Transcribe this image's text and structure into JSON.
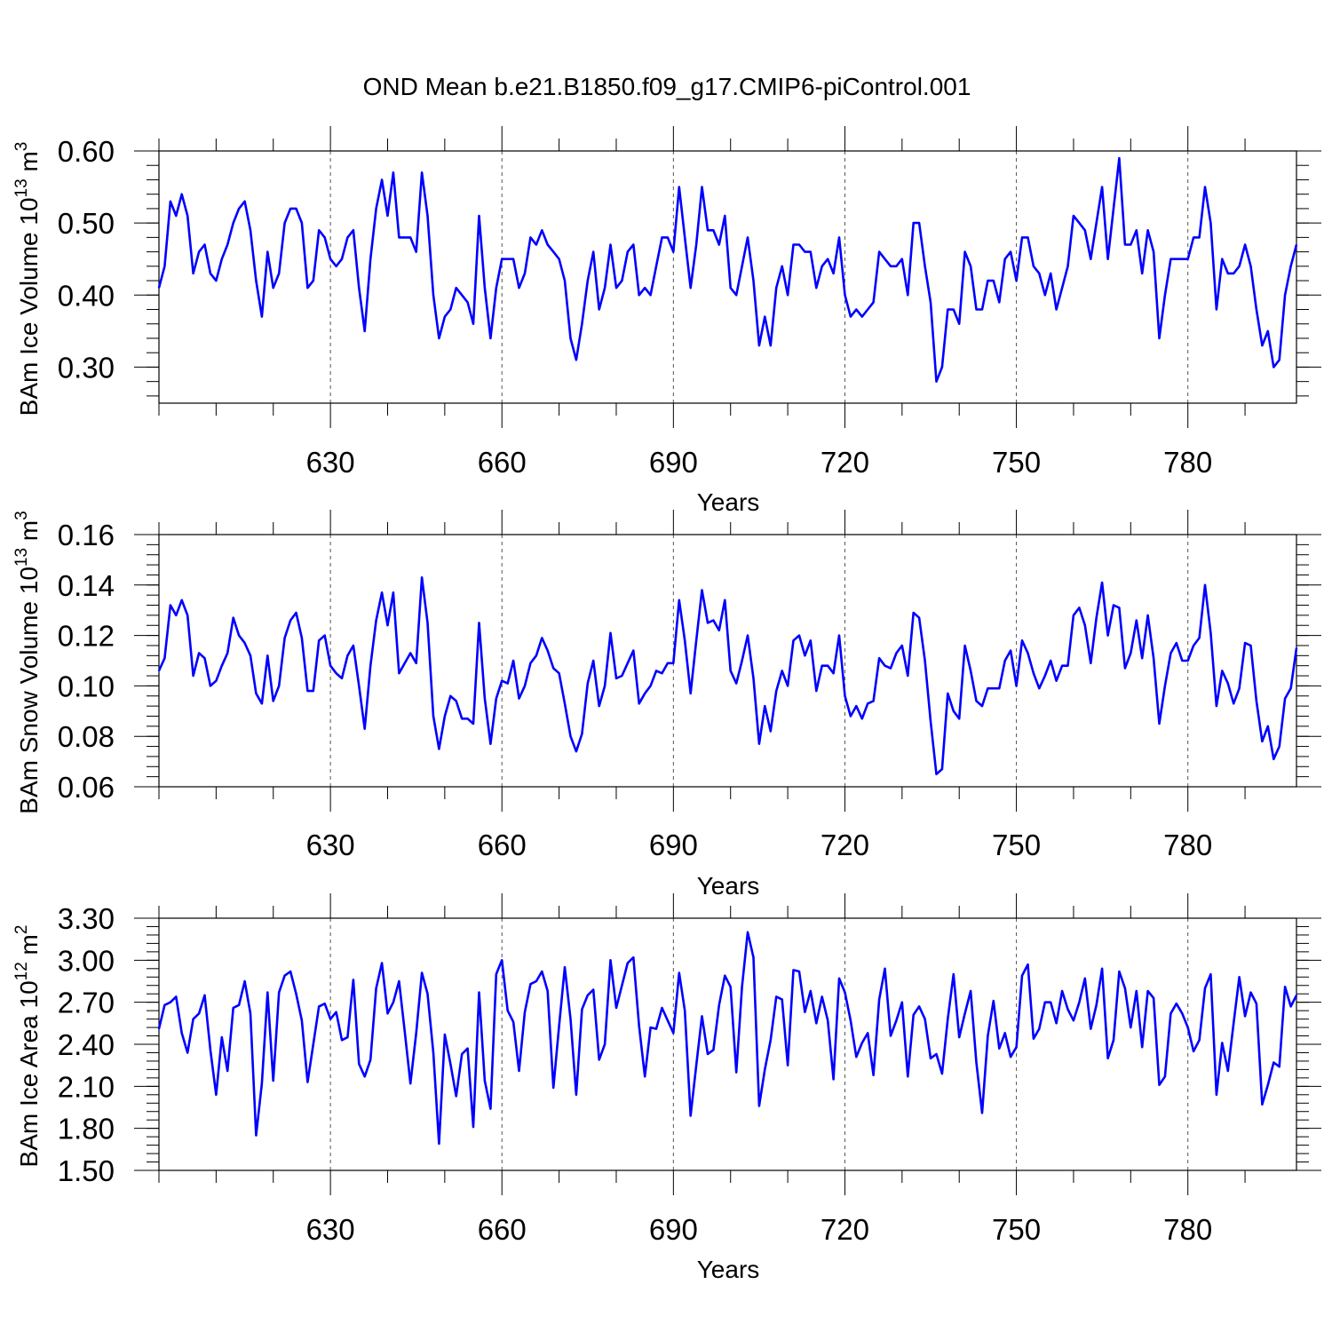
{
  "title": "OND Mean b.e21.B1850.f09_g17.CMIP6-piControl.001",
  "colors": {
    "series": "#0000ff",
    "axis": "#000000",
    "grid": "#555555"
  },
  "chart_data": [
    {
      "type": "line",
      "ylabel": "BAm Ice Volume 10",
      "ylabel_exp": "13",
      "ylabel_unit": " m",
      "ylabel_unit_exp": "3",
      "xlabel": "Years",
      "xlim": [
        600,
        799
      ],
      "ylim": [
        0.25,
        0.6
      ],
      "ytick_labels": [
        "0.30",
        "0.40",
        "0.50",
        "0.60"
      ],
      "xtick_labels": [
        "630",
        "660",
        "690",
        "720",
        "750",
        "780"
      ],
      "series": [
        {
          "name": "BAm Ice Volume",
          "x_start": 600,
          "x_step": 1,
          "values": [
            0.41,
            0.44,
            0.53,
            0.51,
            0.54,
            0.51,
            0.43,
            0.46,
            0.47,
            0.43,
            0.42,
            0.45,
            0.47,
            0.5,
            0.52,
            0.53,
            0.49,
            0.42,
            0.37,
            0.46,
            0.41,
            0.43,
            0.5,
            0.52,
            0.52,
            0.5,
            0.41,
            0.42,
            0.49,
            0.48,
            0.45,
            0.44,
            0.45,
            0.48,
            0.49,
            0.41,
            0.35,
            0.45,
            0.52,
            0.56,
            0.51,
            0.57,
            0.48,
            0.48,
            0.48,
            0.46,
            0.57,
            0.51,
            0.4,
            0.34,
            0.37,
            0.38,
            0.41,
            0.4,
            0.39,
            0.36,
            0.51,
            0.41,
            0.34,
            0.41,
            0.45,
            0.45,
            0.45,
            0.41,
            0.43,
            0.48,
            0.47,
            0.49,
            0.47,
            0.46,
            0.45,
            0.42,
            0.34,
            0.31,
            0.36,
            0.42,
            0.46,
            0.38,
            0.41,
            0.47,
            0.41,
            0.42,
            0.46,
            0.47,
            0.4,
            0.41,
            0.4,
            0.44,
            0.48,
            0.48,
            0.46,
            0.55,
            0.48,
            0.41,
            0.47,
            0.55,
            0.49,
            0.49,
            0.47,
            0.51,
            0.41,
            0.4,
            0.44,
            0.48,
            0.42,
            0.33,
            0.37,
            0.33,
            0.41,
            0.44,
            0.4,
            0.47,
            0.47,
            0.46,
            0.46,
            0.41,
            0.44,
            0.45,
            0.43,
            0.48,
            0.4,
            0.37,
            0.38,
            0.37,
            0.38,
            0.39,
            0.46,
            0.45,
            0.44,
            0.44,
            0.45,
            0.4,
            0.5,
            0.5,
            0.44,
            0.39,
            0.28,
            0.3,
            0.38,
            0.38,
            0.36,
            0.46,
            0.44,
            0.38,
            0.38,
            0.42,
            0.42,
            0.39,
            0.45,
            0.46,
            0.42,
            0.48,
            0.48,
            0.44,
            0.43,
            0.4,
            0.43,
            0.38,
            0.41,
            0.44,
            0.51,
            0.5,
            0.49,
            0.45,
            0.5,
            0.55,
            0.45,
            0.52,
            0.59,
            0.47,
            0.47,
            0.49,
            0.43,
            0.49,
            0.46,
            0.34,
            0.4,
            0.45,
            0.45,
            0.45,
            0.45,
            0.48,
            0.48,
            0.55,
            0.5,
            0.38,
            0.45,
            0.43,
            0.43,
            0.44,
            0.47,
            0.44,
            0.38,
            0.33,
            0.35,
            0.3,
            0.31,
            0.4,
            0.44,
            0.47
          ]
        }
      ]
    },
    {
      "type": "line",
      "ylabel": "BAm Snow Volume 10",
      "ylabel_exp": "13",
      "ylabel_unit": " m",
      "ylabel_unit_exp": "3",
      "xlabel": "Years",
      "xlim": [
        600,
        799
      ],
      "ylim": [
        0.06,
        0.16
      ],
      "ytick_labels": [
        "0.06",
        "0.08",
        "0.10",
        "0.12",
        "0.14",
        "0.16"
      ],
      "xtick_labels": [
        "630",
        "660",
        "690",
        "720",
        "750",
        "780"
      ],
      "series": [
        {
          "name": "BAm Snow Volume",
          "x_start": 600,
          "x_step": 1,
          "values": [
            0.106,
            0.111,
            0.132,
            0.128,
            0.134,
            0.128,
            0.104,
            0.113,
            0.111,
            0.1,
            0.102,
            0.108,
            0.113,
            0.127,
            0.12,
            0.117,
            0.112,
            0.097,
            0.093,
            0.112,
            0.094,
            0.1,
            0.119,
            0.126,
            0.129,
            0.119,
            0.098,
            0.098,
            0.118,
            0.12,
            0.108,
            0.105,
            0.103,
            0.112,
            0.116,
            0.1,
            0.083,
            0.108,
            0.126,
            0.137,
            0.124,
            0.137,
            0.105,
            0.109,
            0.113,
            0.109,
            0.143,
            0.125,
            0.088,
            0.075,
            0.088,
            0.096,
            0.094,
            0.087,
            0.087,
            0.085,
            0.125,
            0.095,
            0.077,
            0.095,
            0.102,
            0.101,
            0.11,
            0.095,
            0.1,
            0.109,
            0.112,
            0.119,
            0.114,
            0.107,
            0.105,
            0.093,
            0.08,
            0.074,
            0.081,
            0.101,
            0.11,
            0.092,
            0.1,
            0.121,
            0.103,
            0.104,
            0.109,
            0.114,
            0.093,
            0.097,
            0.1,
            0.106,
            0.105,
            0.109,
            0.109,
            0.134,
            0.118,
            0.097,
            0.118,
            0.138,
            0.125,
            0.126,
            0.122,
            0.134,
            0.106,
            0.101,
            0.11,
            0.12,
            0.103,
            0.077,
            0.092,
            0.082,
            0.098,
            0.106,
            0.1,
            0.118,
            0.12,
            0.112,
            0.118,
            0.098,
            0.108,
            0.108,
            0.105,
            0.12,
            0.096,
            0.088,
            0.092,
            0.087,
            0.093,
            0.094,
            0.111,
            0.108,
            0.107,
            0.113,
            0.116,
            0.104,
            0.129,
            0.127,
            0.11,
            0.086,
            0.065,
            0.067,
            0.097,
            0.09,
            0.087,
            0.116,
            0.106,
            0.094,
            0.092,
            0.099,
            0.099,
            0.099,
            0.11,
            0.114,
            0.1,
            0.118,
            0.113,
            0.105,
            0.099,
            0.104,
            0.11,
            0.102,
            0.108,
            0.108,
            0.128,
            0.131,
            0.124,
            0.109,
            0.127,
            0.141,
            0.12,
            0.132,
            0.131,
            0.107,
            0.113,
            0.126,
            0.111,
            0.128,
            0.111,
            0.085,
            0.1,
            0.113,
            0.117,
            0.11,
            0.11,
            0.116,
            0.119,
            0.14,
            0.121,
            0.092,
            0.106,
            0.101,
            0.093,
            0.099,
            0.117,
            0.116,
            0.094,
            0.078,
            0.084,
            0.071,
            0.076,
            0.095,
            0.099,
            0.115
          ]
        }
      ]
    },
    {
      "type": "line",
      "ylabel": "BAm Ice Area 10",
      "ylabel_exp": "12",
      "ylabel_unit": " m",
      "ylabel_unit_exp": "2",
      "xlabel": "Years",
      "xlim": [
        600,
        799
      ],
      "ylim": [
        1.5,
        3.3
      ],
      "ytick_labels": [
        "1.50",
        "1.80",
        "2.10",
        "2.40",
        "2.70",
        "3.00",
        "3.30"
      ],
      "xtick_labels": [
        "630",
        "660",
        "690",
        "720",
        "750",
        "780"
      ],
      "series": [
        {
          "name": "BAm Ice Area",
          "x_start": 600,
          "x_step": 1,
          "values": [
            2.51,
            2.68,
            2.7,
            2.74,
            2.48,
            2.34,
            2.58,
            2.62,
            2.75,
            2.36,
            2.04,
            2.45,
            2.21,
            2.66,
            2.68,
            2.85,
            2.62,
            1.75,
            2.12,
            2.77,
            2.14,
            2.77,
            2.89,
            2.92,
            2.76,
            2.57,
            2.13,
            2.4,
            2.67,
            2.69,
            2.58,
            2.63,
            2.43,
            2.45,
            2.86,
            2.26,
            2.17,
            2.29,
            2.8,
            2.98,
            2.62,
            2.7,
            2.85,
            2.49,
            2.12,
            2.48,
            2.91,
            2.76,
            2.34,
            1.69,
            2.47,
            2.26,
            2.03,
            2.33,
            2.37,
            1.81,
            2.77,
            2.14,
            1.94,
            2.9,
            3.0,
            2.64,
            2.56,
            2.21,
            2.63,
            2.83,
            2.85,
            2.92,
            2.78,
            2.09,
            2.53,
            2.95,
            2.58,
            2.04,
            2.65,
            2.75,
            2.79,
            2.29,
            2.4,
            3.0,
            2.66,
            2.82,
            2.98,
            3.02,
            2.53,
            2.17,
            2.52,
            2.51,
            2.66,
            2.57,
            2.48,
            2.91,
            2.64,
            1.89,
            2.25,
            2.6,
            2.33,
            2.36,
            2.68,
            2.89,
            2.81,
            2.2,
            2.81,
            3.2,
            3.02,
            1.96,
            2.22,
            2.43,
            2.74,
            2.72,
            2.25,
            2.93,
            2.92,
            2.63,
            2.78,
            2.55,
            2.74,
            2.57,
            2.15,
            2.87,
            2.77,
            2.57,
            2.31,
            2.41,
            2.48,
            2.18,
            2.72,
            2.94,
            2.46,
            2.57,
            2.7,
            2.17,
            2.61,
            2.67,
            2.58,
            2.3,
            2.33,
            2.19,
            2.58,
            2.9,
            2.45,
            2.62,
            2.78,
            2.27,
            1.91,
            2.46,
            2.71,
            2.37,
            2.48,
            2.31,
            2.38,
            2.89,
            2.97,
            2.44,
            2.51,
            2.7,
            2.7,
            2.55,
            2.78,
            2.65,
            2.57,
            2.7,
            2.87,
            2.51,
            2.68,
            2.94,
            2.3,
            2.43,
            2.92,
            2.8,
            2.52,
            2.78,
            2.38,
            2.78,
            2.73,
            2.11,
            2.17,
            2.62,
            2.69,
            2.62,
            2.52,
            2.35,
            2.43,
            2.8,
            2.9,
            2.04,
            2.41,
            2.21,
            2.55,
            2.88,
            2.6,
            2.77,
            2.69,
            1.97,
            2.11,
            2.27,
            2.24,
            2.81,
            2.67,
            2.75
          ]
        }
      ]
    }
  ]
}
